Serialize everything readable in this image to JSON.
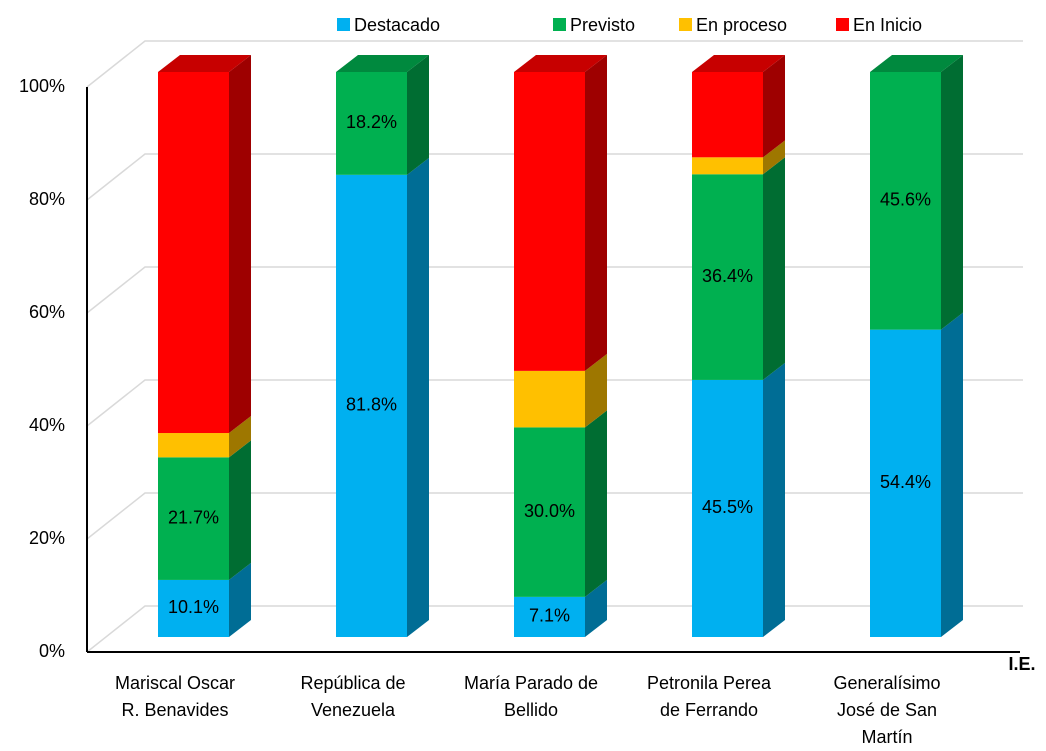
{
  "chart_data": {
    "type": "bar3d_stacked",
    "x_label": "I.E.",
    "categories": [
      "Mariscal Oscar R. Benavides",
      "República de Venezuela",
      "María Parado de Bellido",
      "Petronila Perea de Ferrando",
      "Generalísimo José de San Martín"
    ],
    "series": [
      {
        "name": "Destacado",
        "color": "#00b0f0",
        "values": [
          10.1,
          81.8,
          7.1,
          45.5,
          54.4
        ],
        "value_labels": [
          "10.1%",
          "81.8%",
          "7.1%",
          "45.5%",
          "54.4%"
        ]
      },
      {
        "name": "Previsto",
        "color": "#00b050",
        "values": [
          21.7,
          18.2,
          30.0,
          36.4,
          45.6
        ],
        "value_labels": [
          "21.7%",
          "18.2%",
          "30.0%",
          "36.4%",
          "45.6%"
        ]
      },
      {
        "name": "En proceso",
        "color": "#ffc000",
        "values": [
          4.3,
          0,
          10.0,
          3.0,
          0
        ],
        "value_labels": [
          null,
          null,
          null,
          null,
          null
        ]
      },
      {
        "name": "En Inicio",
        "color": "#ff0000",
        "values": [
          63.9,
          0,
          52.9,
          15.1,
          0
        ],
        "value_labels": [
          null,
          null,
          null,
          null,
          null
        ]
      }
    ],
    "ylim": [
      0,
      100
    ],
    "yticks": [
      {
        "value": 0,
        "label": "0%"
      },
      {
        "value": 20,
        "label": "20%"
      },
      {
        "value": 40,
        "label": "40%"
      },
      {
        "value": 60,
        "label": "60%"
      },
      {
        "value": 80,
        "label": "80%"
      },
      {
        "value": 100,
        "label": "100%"
      }
    ],
    "grid": true,
    "legend": "top"
  }
}
